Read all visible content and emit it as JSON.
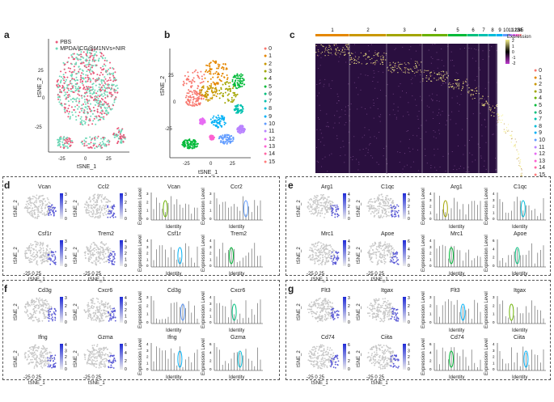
{
  "panels": {
    "a": {
      "label": "a",
      "legend": [
        "PBS",
        "MPDA/ICG@M1NVs+NIR"
      ],
      "legend_colors": [
        "#e8587a",
        "#6fd9b8"
      ],
      "xlabel": "tSNE_1",
      "ylabel": "tSNE_2",
      "xticks": [
        "-25",
        "0",
        "25"
      ],
      "yticks": [
        "25",
        "0",
        "-25"
      ]
    },
    "b": {
      "label": "b",
      "xlabel": "tSNE_1",
      "ylabel": "tSNE_2",
      "xticks": [
        "-25",
        "0",
        "25"
      ],
      "yticks": [
        "25",
        "0",
        "-25"
      ],
      "clusters": [
        "0",
        "1",
        "2",
        "3",
        "4",
        "5",
        "6",
        "7",
        "8",
        "9",
        "10",
        "11",
        "12",
        "13",
        "14",
        "15"
      ],
      "cluster_colors": [
        "#f8766d",
        "#e58700",
        "#c99800",
        "#a3a500",
        "#6bb100",
        "#00ba38",
        "#00bf7d",
        "#00c0af",
        "#00bcd8",
        "#00b0f6",
        "#619cff",
        "#b983ff",
        "#e76bf3",
        "#fd61d1",
        "#ff67a4",
        "#ff7d7d"
      ]
    },
    "c": {
      "label": "c",
      "top_labels": [
        "1",
        "2",
        "3",
        "4",
        "5",
        "6",
        "7",
        "8",
        "9",
        "10",
        "11",
        "12",
        "13",
        "14",
        "15"
      ],
      "colorbar_title": "Expression",
      "colorbar_ticks": [
        "2",
        "1",
        "0",
        "-1",
        "-2"
      ],
      "clusters": [
        "0",
        "1",
        "2",
        "3",
        "4",
        "5",
        "6",
        "7",
        "8",
        "9",
        "10",
        "11",
        "12",
        "13",
        "14",
        "15"
      ]
    },
    "d": {
      "label": "d",
      "genes": [
        {
          "name": "Vcan",
          "scale": [
            "3",
            "2",
            "1",
            "0"
          ]
        },
        {
          "name": "Ccl2",
          "scale": [
            "3",
            "2",
            "1",
            "0"
          ]
        },
        {
          "name": "Csf1r",
          "scale": [
            "3",
            "2",
            "1",
            "0"
          ]
        },
        {
          "name": "Trem2",
          "scale": [
            "4",
            "3",
            "2",
            "1",
            "0"
          ]
        }
      ],
      "violins": [
        {
          "name": "Vcan",
          "yticks": [
            "3",
            "2",
            "1",
            "0"
          ]
        },
        {
          "name": "Ccr2",
          "yticks": [
            "3",
            "2",
            "1",
            "0"
          ]
        },
        {
          "name": "Csf1r",
          "yticks": [
            "4",
            "3",
            "2",
            "1",
            "0"
          ]
        },
        {
          "name": "Trem2",
          "yticks": [
            "4",
            "3",
            "2",
            "1",
            "0"
          ]
        }
      ]
    },
    "e": {
      "label": "e",
      "genes": [
        {
          "name": "Arg1",
          "scale": [
            "4",
            "3",
            "2",
            "1",
            "0"
          ]
        },
        {
          "name": "C1qc",
          "scale": [
            "4",
            "3",
            "2",
            "1",
            "0"
          ]
        },
        {
          "name": "Mrc1",
          "scale": [
            "4",
            "3",
            "2",
            "1",
            "0"
          ]
        },
        {
          "name": "Apoe",
          "scale": [
            "6",
            "4",
            "2",
            "0"
          ]
        }
      ],
      "violins": [
        {
          "name": "Arg1",
          "yticks": [
            "4",
            "3",
            "2",
            "1",
            "0"
          ]
        },
        {
          "name": "C1qc",
          "yticks": [
            "4",
            "3",
            "2",
            "1",
            "0"
          ]
        },
        {
          "name": "Mrc1",
          "yticks": [
            "4",
            "3",
            "2",
            "1",
            "0"
          ]
        },
        {
          "name": "Apoe",
          "yticks": [
            "6",
            "4",
            "2",
            "0"
          ]
        }
      ]
    },
    "f": {
      "label": "f",
      "genes": [
        {
          "name": "Cd3g",
          "scale": [
            "3",
            "2",
            "1",
            "0"
          ]
        },
        {
          "name": "Cxcr6",
          "scale": [
            "4",
            "3",
            "2",
            "1",
            "0"
          ]
        },
        {
          "name": "Ifng",
          "scale": [
            "4",
            "3",
            "2",
            "1",
            "0"
          ]
        },
        {
          "name": "Gzma",
          "scale": [
            "6",
            "4",
            "2",
            "0"
          ]
        }
      ],
      "violins": [
        {
          "name": "Cd3g",
          "yticks": [
            "3",
            "2",
            "1",
            "0"
          ]
        },
        {
          "name": "Cxcr6",
          "yticks": [
            "4",
            "3",
            "2",
            "1",
            "0"
          ]
        },
        {
          "name": "Ifng",
          "yticks": [
            "4",
            "3",
            "2",
            "1",
            "0"
          ]
        },
        {
          "name": "Gzma",
          "yticks": [
            "6",
            "4",
            "2",
            "0"
          ]
        }
      ]
    },
    "g": {
      "label": "g",
      "genes": [
        {
          "name": "Flt3",
          "scale": [
            "3",
            "2",
            "1",
            "0"
          ]
        },
        {
          "name": "Itgax",
          "scale": [
            "3",
            "2",
            "1",
            "0"
          ]
        },
        {
          "name": "Cd74",
          "scale": [
            "6",
            "4",
            "2",
            "0"
          ]
        },
        {
          "name": "Ciita",
          "scale": [
            "4",
            "3",
            "2",
            "1",
            "0"
          ]
        }
      ],
      "violins": [
        {
          "name": "Flt3",
          "yticks": [
            "3",
            "2",
            "1",
            "0"
          ]
        },
        {
          "name": "Itgax",
          "yticks": [
            "3",
            "2",
            "1",
            "0"
          ]
        },
        {
          "name": "Cd74",
          "yticks": [
            "6",
            "4",
            "2",
            "0"
          ]
        },
        {
          "name": "Ciita",
          "yticks": [
            "4",
            "3",
            "2",
            "1",
            "0"
          ]
        }
      ]
    }
  },
  "common": {
    "xlabel": "tSNE_1",
    "ylabel": "tSNE_2",
    "identity_label": "Identity",
    "expr_label": "Expression Level",
    "mini_xticks": "-25 0 25"
  }
}
